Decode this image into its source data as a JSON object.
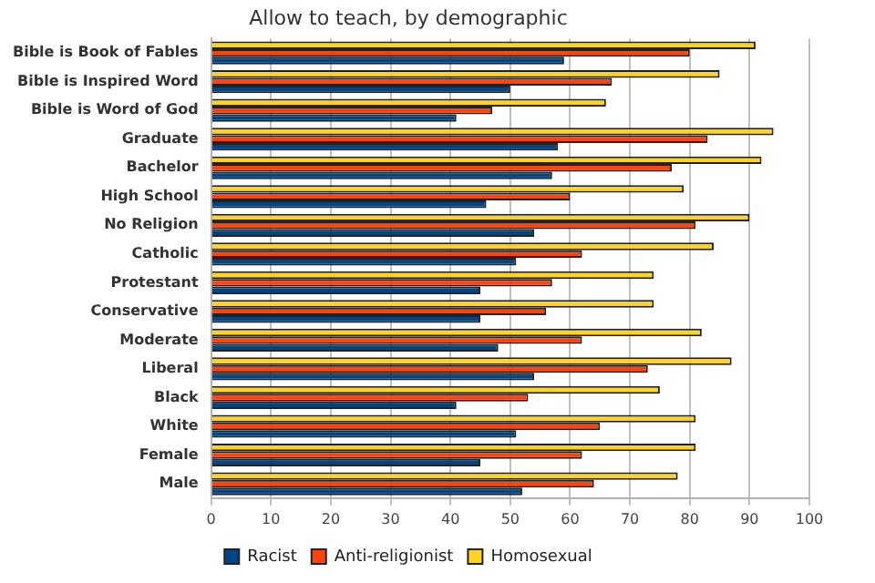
{
  "chart_data": {
    "type": "bar",
    "orientation": "horizontal",
    "title": "Allow to teach, by demographic",
    "categories": [
      "Bible is Book of Fables",
      "Bible is Inspired Word",
      "Bible is Word of God",
      "Graduate",
      "Bachelor",
      "High School",
      "No Religion",
      "Catholic",
      "Protestant",
      "Conservative",
      "Moderate",
      "Liberal",
      "Black",
      "White",
      "Female",
      "Male"
    ],
    "series": [
      {
        "name": "Racist",
        "color": "#004586",
        "values": [
          59,
          50,
          41,
          58,
          57,
          46,
          54,
          51,
          45,
          45,
          48,
          54,
          41,
          51,
          45,
          52
        ]
      },
      {
        "name": "Anti-religionist",
        "color": "#ff420e",
        "values": [
          80,
          67,
          47,
          83,
          77,
          60,
          81,
          62,
          57,
          56,
          62,
          73,
          53,
          65,
          62,
          64
        ]
      },
      {
        "name": "Homosexual",
        "color": "#ffd320",
        "values": [
          91,
          85,
          66,
          94,
          92,
          79,
          90,
          84,
          74,
          74,
          82,
          87,
          75,
          81,
          81,
          78
        ]
      }
    ],
    "xlim": [
      0,
      100
    ],
    "xticks": [
      0,
      10,
      20,
      30,
      40,
      50,
      60,
      70,
      80,
      90,
      100
    ],
    "grid": "x",
    "legend": "bottom"
  }
}
